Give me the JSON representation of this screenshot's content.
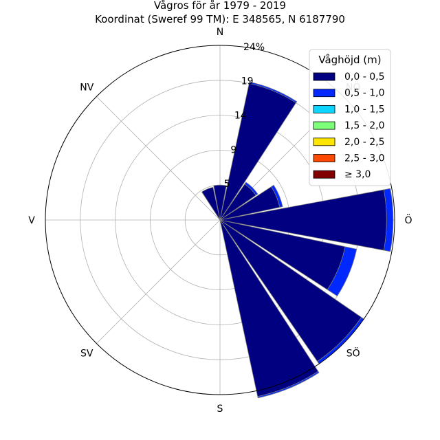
{
  "chart_data": {
    "type": "windrose",
    "title": "Vågros för år 1979 - 2019",
    "subtitle": "Koordinat (Sweref 99 TM): E 348565, N 6187790",
    "direction_labels": [
      "N",
      "NV",
      "V",
      "SV",
      "S",
      "SÖ",
      "Ö",
      "NÖ"
    ],
    "radial_ticks": [
      "5",
      "9",
      "14",
      "19",
      "24%"
    ],
    "radial_values": [
      4.8,
      9.6,
      14.4,
      19.2,
      24.0
    ],
    "r_max": 24.0,
    "grid": true,
    "legend": {
      "title": "Våghöjd (m)",
      "position": "top-right",
      "entries": [
        {
          "label": "0,0 - 0,5",
          "color": "#000080"
        },
        {
          "label": "0,5 - 1,0",
          "color": "#0028ff"
        },
        {
          "label": "1,0 - 1,5",
          "color": "#0dd5ff"
        },
        {
          "label": "1,5 - 2,0",
          "color": "#7dff7a"
        },
        {
          "label": "2,0 - 2,5",
          "color": "#ffe500"
        },
        {
          "label": "2,5 - 3,0",
          "color": "#ff4800"
        },
        {
          "label": "≥ 3,0",
          "color": "#800000"
        }
      ]
    },
    "sector_width_deg": 22.5,
    "bars": [
      {
        "direction_deg": 0,
        "values": [
          4.8,
          0,
          0,
          0,
          0,
          0,
          0
        ]
      },
      {
        "direction_deg": 22.5,
        "values": [
          19.2,
          0.2,
          0,
          0,
          0,
          0,
          0
        ]
      },
      {
        "direction_deg": 45,
        "values": [
          6.0,
          0.3,
          0,
          0,
          0,
          0,
          0
        ]
      },
      {
        "direction_deg": 67.5,
        "values": [
          8.4,
          0.4,
          0,
          0,
          0,
          0,
          0
        ]
      },
      {
        "direction_deg": 90,
        "values": [
          22.9,
          0.9,
          0,
          0,
          0,
          0,
          0
        ]
      },
      {
        "direction_deg": 112.5,
        "values": [
          17.6,
          1.6,
          0,
          0,
          0,
          0,
          0
        ]
      },
      {
        "direction_deg": 135,
        "values": [
          23.6,
          0.4,
          0,
          0,
          0,
          0,
          0
        ]
      },
      {
        "direction_deg": 157.5,
        "values": [
          24.8,
          0.2,
          0,
          0,
          0,
          0,
          0
        ]
      },
      {
        "direction_deg": 337.5,
        "values": [
          4.6,
          0,
          0,
          0,
          0,
          0,
          0
        ]
      }
    ]
  }
}
